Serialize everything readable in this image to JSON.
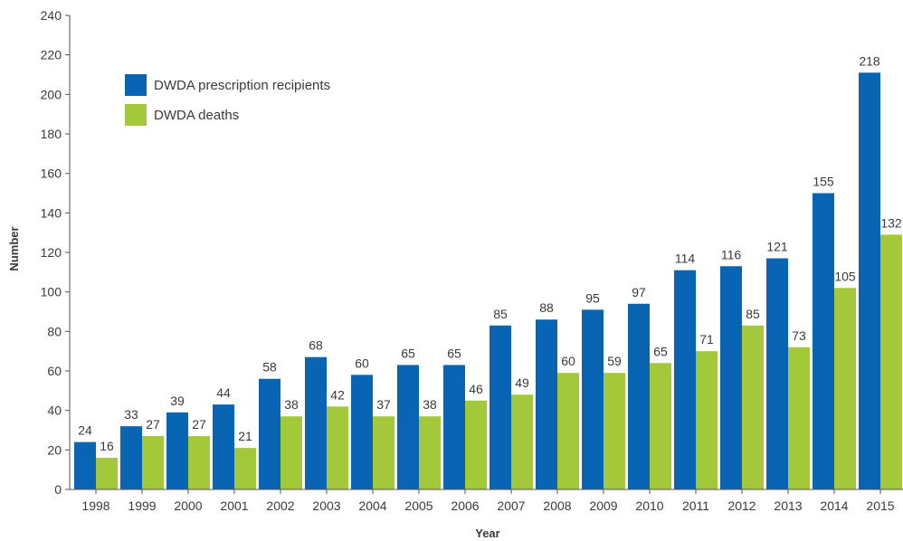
{
  "chart_data": {
    "type": "bar",
    "title": "",
    "xlabel": "Year",
    "ylabel": "Number",
    "ylim": [
      0,
      240
    ],
    "yticks": [
      0,
      20,
      40,
      60,
      80,
      100,
      120,
      140,
      160,
      180,
      200,
      220,
      240
    ],
    "grid": false,
    "legend_position": "top-left",
    "categories": [
      "1998",
      "1999",
      "2000",
      "2001",
      "2002",
      "2003",
      "2004",
      "2005",
      "2006",
      "2007",
      "2008",
      "2009",
      "2010",
      "2011",
      "2012",
      "2013",
      "2014",
      "2015"
    ],
    "series": [
      {
        "name": "DWDA prescription recipients",
        "color": "#0a64b4",
        "values": [
          24,
          33,
          39,
          44,
          58,
          68,
          60,
          65,
          65,
          85,
          88,
          95,
          97,
          114,
          116,
          121,
          155,
          218
        ],
        "plotted_values": [
          24,
          32,
          39,
          43,
          56,
          67,
          58,
          63,
          63,
          83,
          86,
          91,
          94,
          111,
          113,
          117,
          150,
          211
        ]
      },
      {
        "name": "DWDA deaths",
        "color": "#a3c93a",
        "values": [
          16,
          27,
          27,
          21,
          38,
          42,
          37,
          38,
          46,
          49,
          60,
          59,
          65,
          71,
          85,
          73,
          105,
          132
        ],
        "plotted_values": [
          16,
          27,
          27,
          21,
          37,
          42,
          37,
          37,
          45,
          48,
          59,
          59,
          64,
          70,
          83,
          72,
          102,
          129
        ]
      }
    ]
  }
}
